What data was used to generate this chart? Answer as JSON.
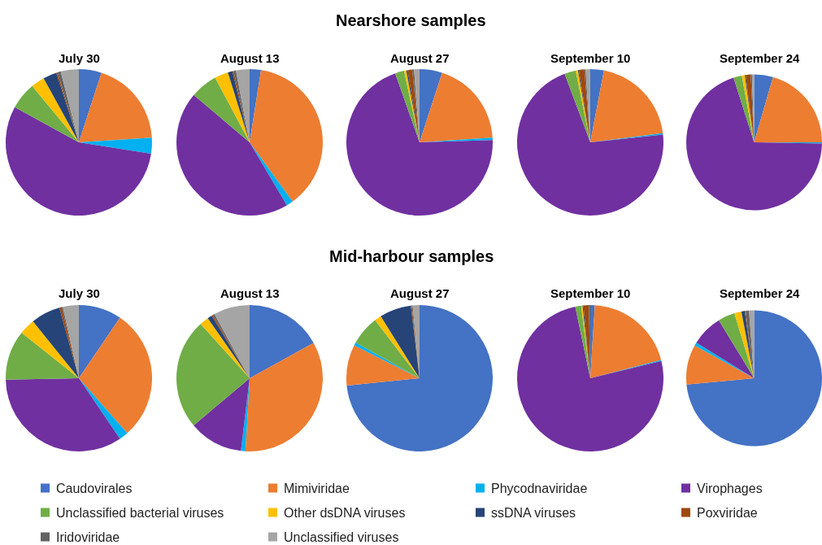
{
  "chart_data": [
    {
      "type": "pie",
      "title": "July 30",
      "annotations": [
        "Nearshore samples"
      ],
      "legend": "bottom",
      "categories": [
        "Caudovirales",
        "Mimiviridae",
        "Phycodnaviridae",
        "Virophages",
        "Unclassified bacterial viruses",
        "Other dsDNA viruses",
        "ssDNA viruses",
        "Poxviridae",
        "Iridoviridae",
        "Unclassified viruses"
      ],
      "colors": [
        "#4472c4",
        "#ed7d31",
        "#00b0f0",
        "#7030a0",
        "#70ad47",
        "#ffc000",
        "#264478",
        "#9e480e",
        "#636363",
        "#a5a5a5"
      ],
      "values": [
        5,
        19,
        3.5,
        55.5,
        6,
        3,
        3,
        0.3,
        0.7,
        4
      ]
    },
    {
      "type": "pie",
      "title": "August 13",
      "colors": [
        "#4472c4",
        "#ed7d31",
        "#00b0f0",
        "#7030a0",
        "#70ad47",
        "#ffc000",
        "#264478",
        "#9e480e",
        "#636363",
        "#a5a5a5"
      ],
      "values": [
        2.5,
        37.5,
        1.5,
        44.7,
        6,
        3,
        1,
        0.3,
        0.5,
        3
      ]
    },
    {
      "type": "pie",
      "title": "August 27",
      "colors": [
        "#4472c4",
        "#ed7d31",
        "#00b0f0",
        "#7030a0",
        "#70ad47",
        "#ffc000",
        "#264478",
        "#9e480e",
        "#636363",
        "#a5a5a5"
      ],
      "values": [
        5,
        19,
        0.5,
        70.1,
        2,
        0.5,
        0.3,
        1,
        0.4,
        1.2
      ]
    },
    {
      "type": "pie",
      "title": "September 10",
      "colors": [
        "#4472c4",
        "#ed7d31",
        "#00b0f0",
        "#7030a0",
        "#70ad47",
        "#ffc000",
        "#264478",
        "#9e480e",
        "#636363",
        "#a5a5a5"
      ],
      "values": [
        3,
        20,
        0.3,
        71,
        2.5,
        0.5,
        0.2,
        1.2,
        0.3,
        1
      ]
    },
    {
      "type": "pie",
      "title": "September 24",
      "colors": [
        "#4472c4",
        "#ed7d31",
        "#00b0f0",
        "#7030a0",
        "#70ad47",
        "#ffc000",
        "#264478",
        "#9e480e",
        "#636363",
        "#a5a5a5"
      ],
      "values": [
        4.5,
        20.5,
        0.3,
        69.8,
        2,
        0.7,
        0.2,
        1.2,
        0.3,
        0.5
      ]
    },
    {
      "type": "pie",
      "title": "July 30",
      "annotations": [
        "Mid-harbour samples"
      ],
      "colors": [
        "#4472c4",
        "#ed7d31",
        "#00b0f0",
        "#7030a0",
        "#70ad47",
        "#ffc000",
        "#264478",
        "#9e480e",
        "#636363",
        "#a5a5a5"
      ],
      "values": [
        9.5,
        29,
        2,
        34.2,
        11,
        3.5,
        6.5,
        0.5,
        0.3,
        3.5
      ]
    },
    {
      "type": "pie",
      "title": "August 13",
      "colors": [
        "#4472c4",
        "#ed7d31",
        "#00b0f0",
        "#7030a0",
        "#70ad47",
        "#ffc000",
        "#264478",
        "#9e480e",
        "#636363",
        "#a5a5a5"
      ],
      "values": [
        17,
        34,
        1,
        12,
        24.5,
        2,
        1,
        0.3,
        0.4,
        8
      ]
    },
    {
      "type": "pie",
      "title": "August 27",
      "colors": [
        "#4472c4",
        "#ed7d31",
        "#00b0f0",
        "#7030a0",
        "#70ad47",
        "#ffc000",
        "#264478",
        "#9e480e",
        "#636363",
        "#a5a5a5"
      ],
      "values": [
        73.5,
        9,
        0.7,
        0,
        6.5,
        1.5,
        7,
        0.2,
        0.2,
        1.5
      ]
    },
    {
      "type": "pie",
      "title": "September 10",
      "colors": [
        "#4472c4",
        "#ed7d31",
        "#00b0f0",
        "#7030a0",
        "#70ad47",
        "#ffc000",
        "#264478",
        "#9e480e",
        "#636363",
        "#a5a5a5"
      ],
      "values": [
        1,
        20,
        0.2,
        75.5,
        1.3,
        0.3,
        0.2,
        1.2,
        0.3,
        0
      ]
    },
    {
      "type": "pie",
      "title": "September 24",
      "colors": [
        "#4472c4",
        "#ed7d31",
        "#00b0f0",
        "#7030a0",
        "#70ad47",
        "#ffc000",
        "#264478",
        "#9e480e",
        "#636363",
        "#a5a5a5"
      ],
      "values": [
        73.5,
        9.5,
        0.8,
        7.5,
        4,
        1.7,
        0.8,
        0.2,
        0.8,
        1.2
      ]
    }
  ]
}
